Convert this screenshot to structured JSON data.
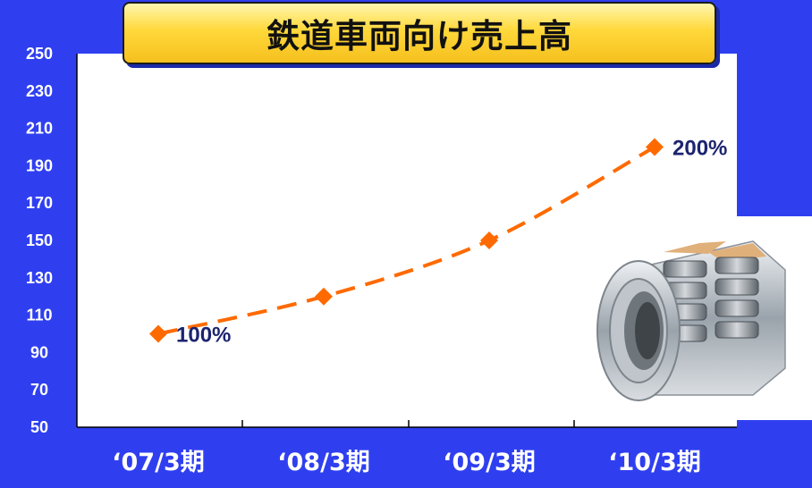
{
  "chart_data": {
    "type": "line",
    "title": "鉄道車両向け売上高",
    "categories": [
      "‘07/3期",
      "‘08/3期",
      "‘09/3期",
      "‘10/3期"
    ],
    "series": [
      {
        "values": [
          100,
          120,
          150,
          200
        ]
      }
    ],
    "data_labels": [
      "100%",
      "",
      "",
      "200%"
    ],
    "yticks": [
      50,
      70,
      90,
      110,
      130,
      150,
      170,
      190,
      210,
      230,
      250
    ],
    "ylim": [
      50,
      250
    ],
    "grid": false,
    "colors": {
      "line": "#ff6a00",
      "marker": "#ff6a00",
      "label": "#1c2470",
      "background": "#2f3ff0",
      "plot": "#ffffff"
    }
  },
  "photo": {
    "icon": "bearing-photo-icon"
  }
}
